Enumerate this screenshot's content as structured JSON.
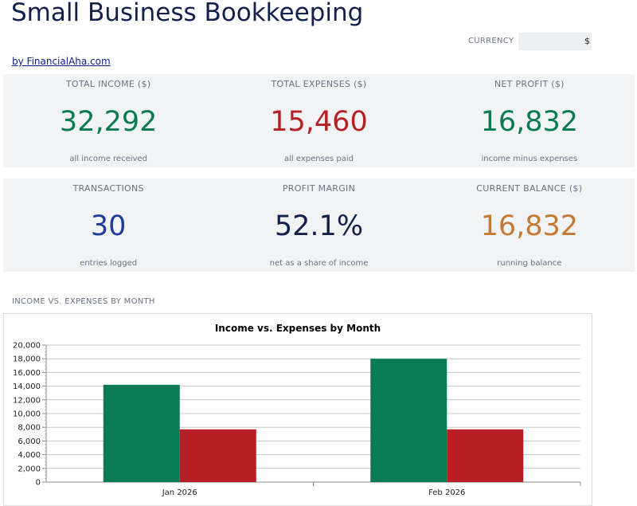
{
  "header": {
    "title": "Small Business Bookkeeping",
    "byline": "by FinancialAha.com",
    "currency_label": "CURRENCY",
    "currency_value": "$"
  },
  "cards": [
    {
      "label": "TOTAL INCOME ($)",
      "value": "32,292",
      "sub": "all income received",
      "color": "#0a7a55"
    },
    {
      "label": "TOTAL EXPENSES ($)",
      "value": "15,460",
      "sub": "all expenses paid",
      "color": "#b81f24"
    },
    {
      "label": "NET PROFIT ($)",
      "value": "16,832",
      "sub": "income minus expenses",
      "color": "#0a7a55"
    },
    {
      "label": "TRANSACTIONS",
      "value": "30",
      "sub": "entries logged",
      "color": "#1f3c99"
    },
    {
      "label": "PROFIT MARGIN",
      "value": "52.1%",
      "sub": "net as a share of income",
      "color": "#13204a"
    },
    {
      "label": "CURRENT BALANCE ($)",
      "value": "16,832",
      "sub": "running balance",
      "color": "#c47a35"
    }
  ],
  "section": {
    "chart_heading": "INCOME VS. EXPENSES BY MONTH"
  },
  "chart_data": {
    "type": "bar",
    "title": "Income vs. Expenses by Month",
    "xlabel": "",
    "ylabel": "",
    "categories": [
      "Jan 2026",
      "Feb 2026"
    ],
    "series": [
      {
        "values": [
          14200,
          18000
        ],
        "color": "#0a7a55"
      },
      {
        "values": [
          7700,
          7700
        ],
        "color": "#b81f24"
      }
    ],
    "ylim": [
      0,
      20000
    ],
    "yticks": [
      0,
      2000,
      4000,
      6000,
      8000,
      10000,
      12000,
      14000,
      16000,
      18000,
      20000
    ],
    "ytick_labels": [
      "0",
      "2,000",
      "4,000",
      "6,000",
      "8,000",
      "10,000",
      "12,000",
      "14,000",
      "16,000",
      "18,000",
      "20,000"
    ],
    "grid": true,
    "legend": "none"
  }
}
